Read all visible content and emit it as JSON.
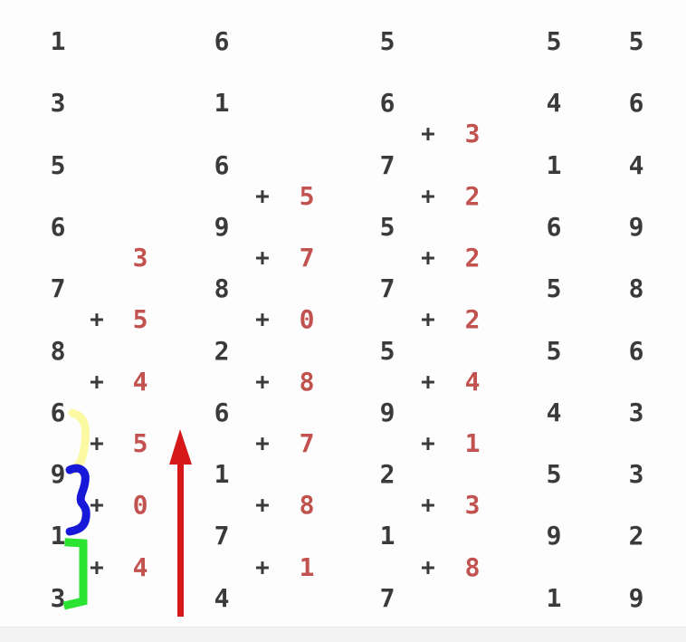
{
  "page": {
    "background": "#fdfdfd",
    "footer_strip_color": "#f3f3f4"
  },
  "grid": {
    "digit_color": "#3a3a3a",
    "plus_color": "#3a3a3a",
    "red_digit_color": "#c25250",
    "plus_sign": "+",
    "columns": [
      {
        "name": "column-1",
        "digits": [
          "1",
          "3",
          "5",
          "6",
          "7",
          "8",
          "6",
          "9",
          "1",
          "3"
        ],
        "additions": [
          {
            "gap": 3,
            "plus": false,
            "value": "3"
          },
          {
            "gap": 4,
            "plus": true,
            "value": "5"
          },
          {
            "gap": 5,
            "plus": true,
            "value": "4"
          },
          {
            "gap": 6,
            "plus": true,
            "value": "5"
          },
          {
            "gap": 7,
            "plus": true,
            "value": "0"
          },
          {
            "gap": 8,
            "plus": true,
            "value": "4"
          }
        ]
      },
      {
        "name": "column-2",
        "digits": [
          "6",
          "1",
          "6",
          "9",
          "8",
          "2",
          "6",
          "1",
          "7",
          "4"
        ],
        "additions": [
          {
            "gap": 2,
            "plus": true,
            "value": "5"
          },
          {
            "gap": 3,
            "plus": true,
            "value": "7"
          },
          {
            "gap": 4,
            "plus": true,
            "value": "0"
          },
          {
            "gap": 5,
            "plus": true,
            "value": "8"
          },
          {
            "gap": 6,
            "plus": true,
            "value": "7"
          },
          {
            "gap": 7,
            "plus": true,
            "value": "8"
          },
          {
            "gap": 8,
            "plus": true,
            "value": "1"
          }
        ]
      },
      {
        "name": "column-3",
        "digits": [
          "5",
          "6",
          "7",
          "5",
          "7",
          "5",
          "9",
          "2",
          "1",
          "7"
        ],
        "additions": [
          {
            "gap": 1,
            "plus": true,
            "value": "3"
          },
          {
            "gap": 2,
            "plus": true,
            "value": "2"
          },
          {
            "gap": 3,
            "plus": true,
            "value": "2"
          },
          {
            "gap": 4,
            "plus": true,
            "value": "2"
          },
          {
            "gap": 5,
            "plus": true,
            "value": "4"
          },
          {
            "gap": 6,
            "plus": true,
            "value": "1"
          },
          {
            "gap": 7,
            "plus": true,
            "value": "3"
          },
          {
            "gap": 8,
            "plus": true,
            "value": "8"
          }
        ]
      },
      {
        "name": "column-4",
        "digits": [
          "5",
          "4",
          "1",
          "6",
          "5",
          "5",
          "4",
          "5",
          "9",
          "1"
        ],
        "additions": []
      },
      {
        "name": "column-5",
        "digits": [
          "5",
          "6",
          "4",
          "9",
          "8",
          "6",
          "3",
          "3",
          "2",
          "9"
        ],
        "additions": []
      }
    ]
  },
  "annotations": {
    "yellow_brace": {
      "color": "#fbf9a2",
      "links": [
        "6",
        "9"
      ]
    },
    "blue_brace": {
      "color": "#1818d8",
      "links": [
        "9",
        "1"
      ]
    },
    "green_bracket": {
      "color": "#2be432",
      "links": [
        "1",
        "3"
      ]
    },
    "red_arrow": {
      "color": "#d61818",
      "direction": "up"
    }
  }
}
